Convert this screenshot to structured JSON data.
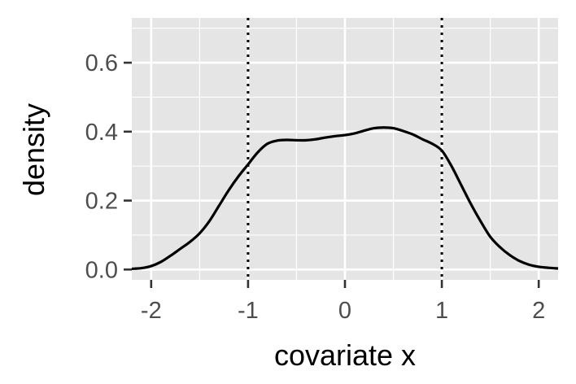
{
  "chart_data": {
    "type": "line",
    "title": "",
    "xlabel": "covariate x",
    "ylabel": "density",
    "xlim": [
      -2.2,
      2.2
    ],
    "ylim": [
      -0.03,
      0.73
    ],
    "x_ticks": [
      -2,
      -1,
      0,
      1,
      2
    ],
    "x_tick_labels": [
      "-2",
      "-1",
      "0",
      "1",
      "2"
    ],
    "y_ticks": [
      0.0,
      0.2,
      0.4,
      0.6
    ],
    "y_tick_labels": [
      "0.0",
      "0.2",
      "0.4",
      "0.6"
    ],
    "grid": true,
    "legend": "none",
    "series": [
      {
        "x": [
          -2.2,
          -2.1,
          -2.0,
          -1.9,
          -1.8,
          -1.7,
          -1.6,
          -1.5,
          -1.4,
          -1.3,
          -1.2,
          -1.1,
          -1.0,
          -0.9,
          -0.8,
          -0.7,
          -0.6,
          -0.5,
          -0.4,
          -0.3,
          -0.2,
          -0.1,
          0.0,
          0.1,
          0.2,
          0.3,
          0.4,
          0.5,
          0.6,
          0.7,
          0.8,
          0.9,
          1.0,
          1.1,
          1.2,
          1.3,
          1.4,
          1.5,
          1.6,
          1.7,
          1.8,
          1.9,
          2.0,
          2.1,
          2.2
        ],
        "y": [
          0.002,
          0.004,
          0.01,
          0.022,
          0.04,
          0.06,
          0.08,
          0.105,
          0.14,
          0.185,
          0.23,
          0.27,
          0.305,
          0.34,
          0.365,
          0.374,
          0.376,
          0.375,
          0.375,
          0.378,
          0.383,
          0.387,
          0.39,
          0.395,
          0.403,
          0.41,
          0.412,
          0.41,
          0.402,
          0.392,
          0.378,
          0.365,
          0.345,
          0.3,
          0.245,
          0.19,
          0.14,
          0.095,
          0.065,
          0.042,
          0.025,
          0.014,
          0.008,
          0.005,
          0.003
        ]
      }
    ],
    "vlines": [
      -1,
      1
    ],
    "colors": {
      "panel_bg": "#e5e5e5",
      "grid": "#ffffff",
      "line": "#000000",
      "axis_text": "#4d4d4d"
    }
  }
}
